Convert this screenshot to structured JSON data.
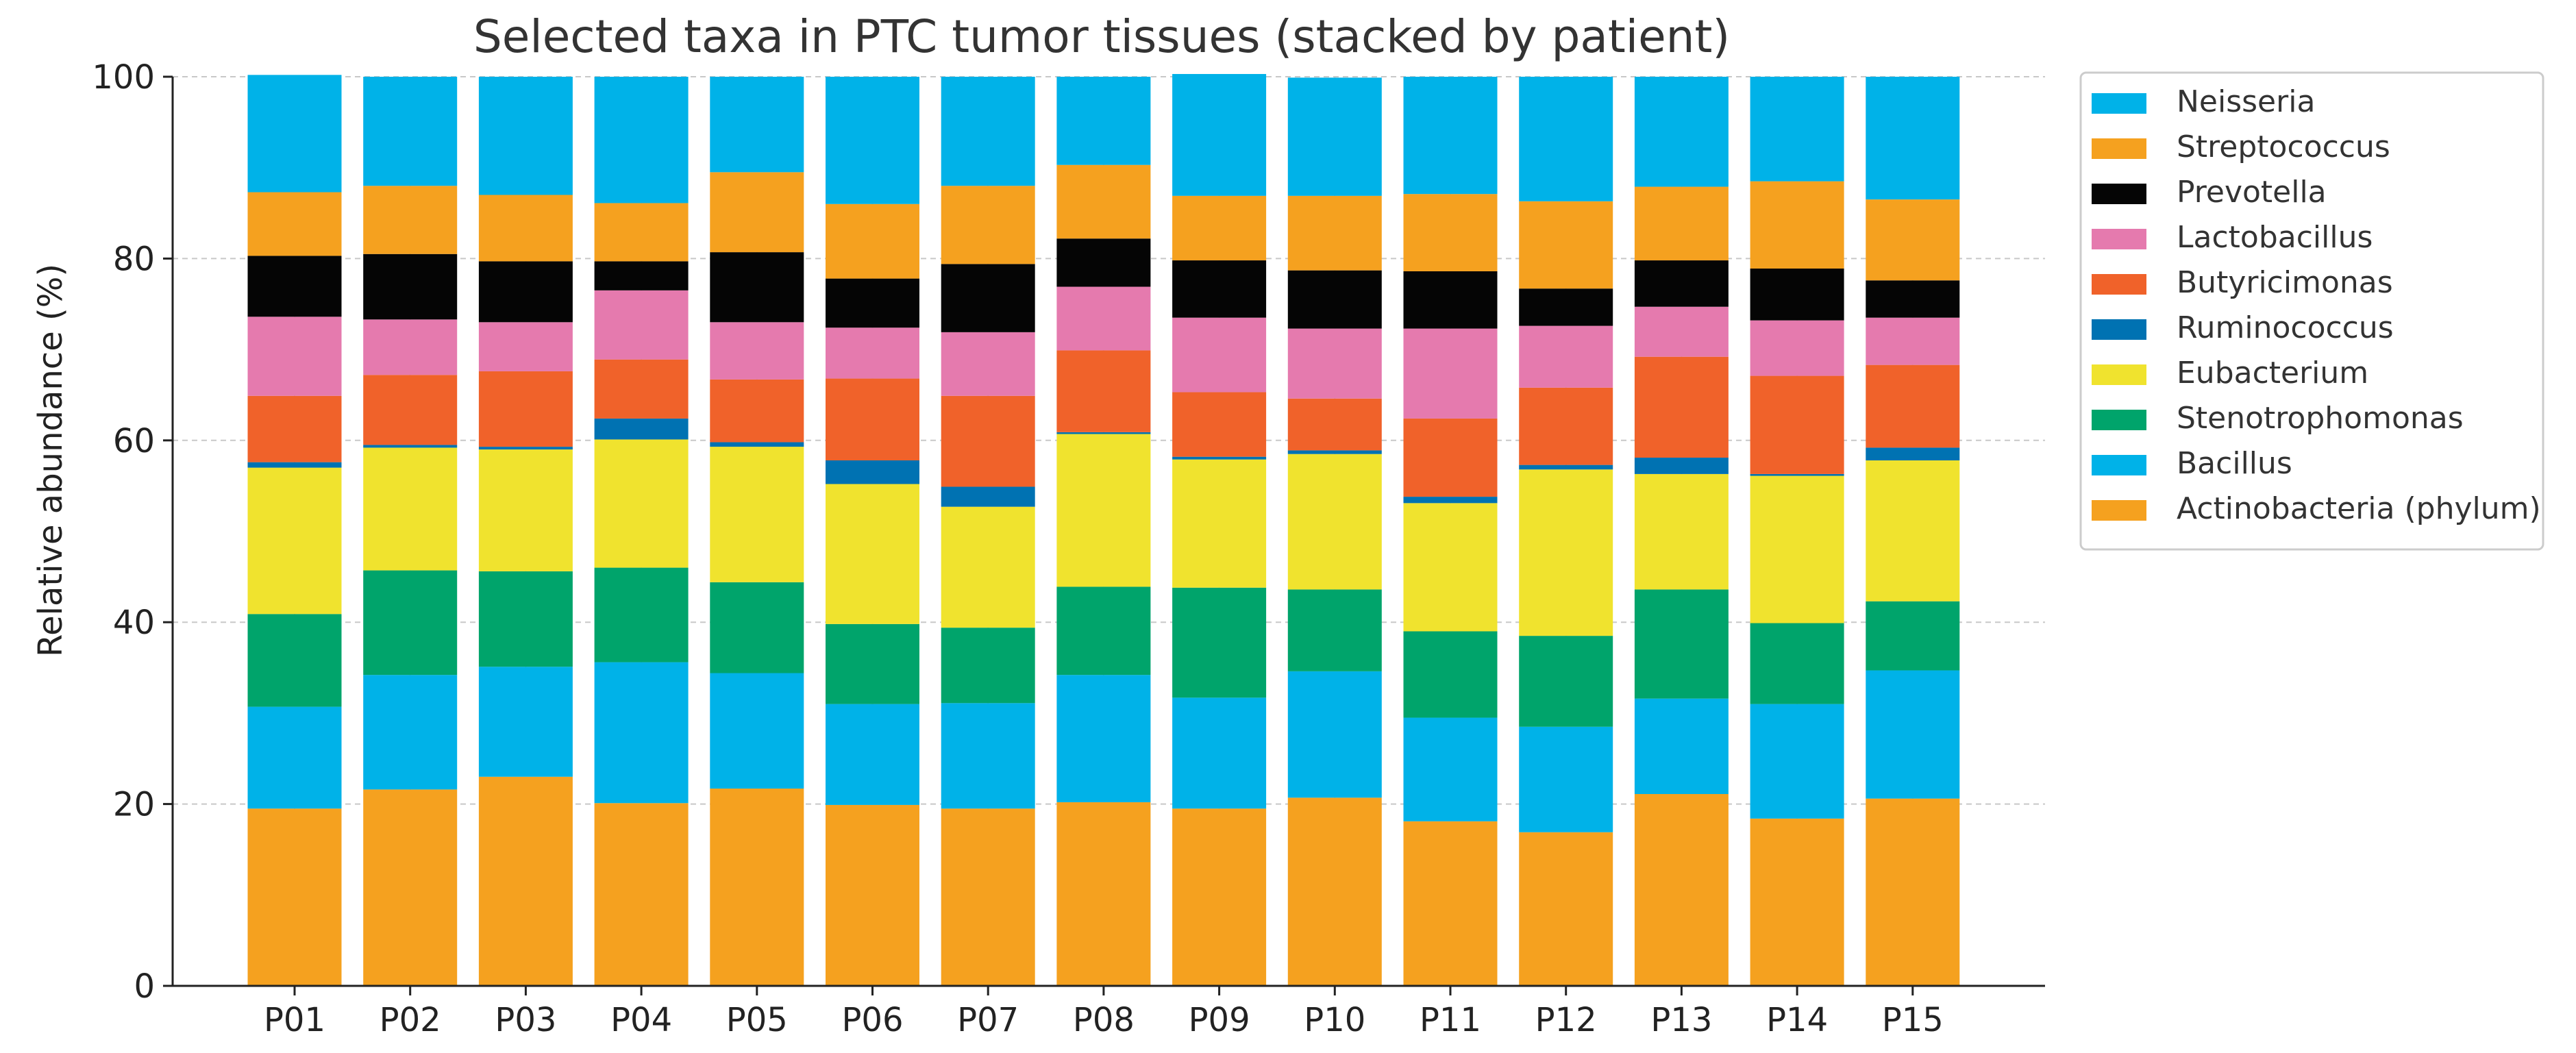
{
  "chart_data": {
    "type": "bar",
    "stacked": true,
    "title": "Selected taxa in PTC tumor tissues (stacked by patient)",
    "xlabel": "",
    "ylabel": "Relative abundance (%)",
    "ylim": [
      0,
      100
    ],
    "yticks": [
      0,
      20,
      40,
      60,
      80,
      100
    ],
    "grid": true,
    "legend_position": "outside-right-top",
    "categories": [
      "P01",
      "P02",
      "P03",
      "P04",
      "P05",
      "P06",
      "P07",
      "P08",
      "P09",
      "P10",
      "P11",
      "P12",
      "P13",
      "P14",
      "P15"
    ],
    "series": [
      {
        "name": "Actinobacteria (phylum)",
        "color": "#F5A11F",
        "values": [
          19.5,
          21.6,
          23.0,
          20.1,
          21.7,
          19.9,
          19.5,
          20.2,
          19.5,
          20.7,
          18.1,
          16.9,
          21.1,
          18.4,
          20.6
        ]
      },
      {
        "name": "Bacillus",
        "color": "#00B2E8",
        "values": [
          11.2,
          12.6,
          12.1,
          15.5,
          12.7,
          11.1,
          11.6,
          14.0,
          12.2,
          13.9,
          11.4,
          11.6,
          10.5,
          12.6,
          14.1
        ]
      },
      {
        "name": "Stenotrophomonas",
        "color": "#00A46B",
        "values": [
          10.2,
          11.5,
          10.5,
          10.4,
          10.0,
          8.8,
          8.3,
          9.7,
          12.1,
          9.0,
          9.5,
          10.0,
          12.0,
          8.9,
          7.6
        ]
      },
      {
        "name": "Eubacterium",
        "color": "#F0E32E",
        "values": [
          16.1,
          13.5,
          13.4,
          14.1,
          14.9,
          15.4,
          13.3,
          16.8,
          14.1,
          14.9,
          14.1,
          18.3,
          12.7,
          16.2,
          15.5
        ]
      },
      {
        "name": "Ruminococcus",
        "color": "#0072B2",
        "values": [
          0.6,
          0.3,
          0.3,
          2.3,
          0.5,
          2.6,
          2.2,
          0.2,
          0.3,
          0.4,
          0.7,
          0.5,
          1.8,
          0.2,
          1.4
        ]
      },
      {
        "name": "Butyricimonas",
        "color": "#F0622A",
        "values": [
          7.3,
          7.7,
          8.3,
          6.5,
          6.9,
          9.0,
          10.0,
          9.0,
          7.1,
          5.7,
          8.6,
          8.5,
          11.1,
          10.8,
          9.1
        ]
      },
      {
        "name": "Lactobacillus",
        "color": "#E57AAE",
        "values": [
          8.7,
          6.1,
          5.4,
          7.6,
          6.3,
          5.6,
          7.0,
          7.0,
          8.2,
          7.7,
          9.9,
          6.8,
          5.5,
          6.1,
          5.2
        ]
      },
      {
        "name": "Prevotella",
        "color": "#050505",
        "values": [
          6.7,
          7.2,
          6.7,
          3.2,
          7.7,
          5.4,
          7.5,
          5.3,
          6.3,
          6.4,
          6.3,
          4.1,
          5.1,
          5.7,
          4.1
        ]
      },
      {
        "name": "Streptococcus",
        "color": "#F5A11F",
        "values": [
          7.0,
          7.5,
          7.3,
          6.4,
          8.8,
          8.2,
          8.6,
          8.1,
          7.1,
          8.2,
          8.5,
          9.6,
          8.1,
          9.6,
          8.9
        ]
      },
      {
        "name": "Neisseria",
        "color": "#00B2E8",
        "values": [
          12.9,
          12.0,
          13.0,
          13.9,
          10.5,
          14.0,
          12.0,
          9.7,
          13.4,
          13.0,
          12.9,
          13.7,
          12.1,
          11.5,
          13.5
        ]
      }
    ]
  }
}
